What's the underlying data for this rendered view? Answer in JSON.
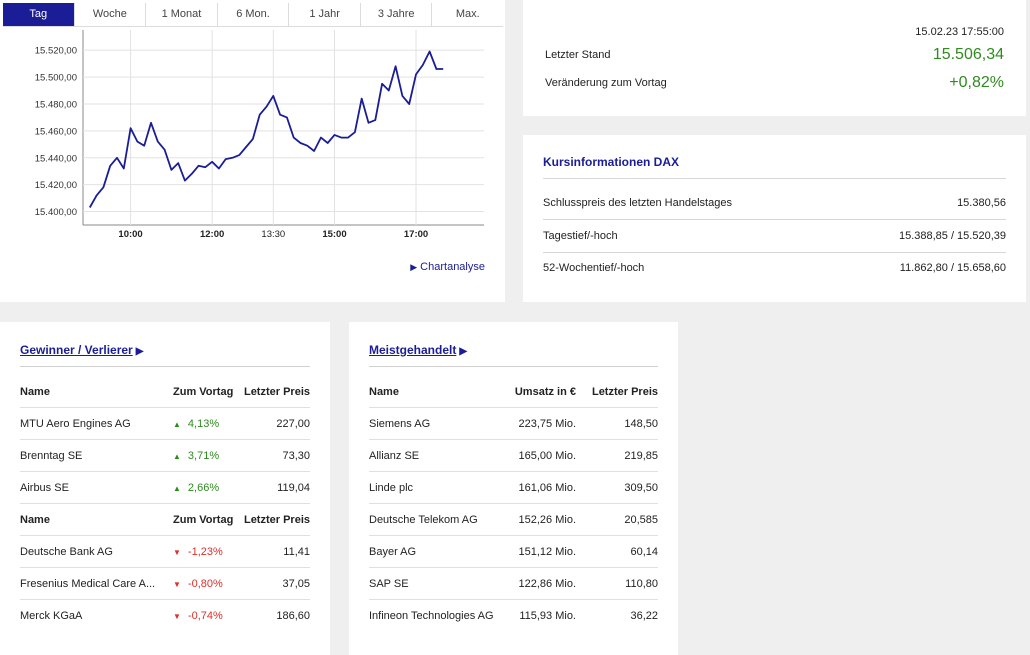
{
  "tabs": [
    {
      "label": "Tag",
      "active": true
    },
    {
      "label": "Woche"
    },
    {
      "label": "1 Monat"
    },
    {
      "label": "6 Mon."
    },
    {
      "label": "1 Jahr"
    },
    {
      "label": "3 Jahre"
    },
    {
      "label": "Max."
    }
  ],
  "chart_data": {
    "type": "line",
    "y_ticks": [
      "15.400,00",
      "15.420,00",
      "15.440,00",
      "15.460,00",
      "15.480,00",
      "15.500,00",
      "15.520,00"
    ],
    "x_ticks": [
      "10:00",
      "12:00",
      "13:30",
      "15:00",
      "17:00"
    ],
    "ylim": [
      15400,
      15520
    ],
    "grid": true,
    "line_color": "#1a1d96",
    "series": [
      {
        "values": [
          15403,
          15412,
          15418,
          15434,
          15440,
          15432,
          15462,
          15452,
          15449,
          15466,
          15452,
          15446,
          15431,
          15436,
          15423,
          15428,
          15434,
          15433,
          15437,
          15432,
          15439,
          15440,
          15442,
          15448,
          15454,
          15472,
          15478,
          15486,
          15472,
          15470,
          15455,
          15451,
          15449,
          15445,
          15455,
          15451,
          15457,
          15455,
          15455,
          15459,
          15484,
          15466,
          15468,
          15495,
          15490,
          15508,
          15486,
          15480,
          15502,
          15509,
          15519,
          15506,
          15506
        ],
        "x": [
          "09:00",
          "09:10",
          "09:20",
          "09:30",
          "09:40",
          "09:50",
          "10:00",
          "10:10",
          "10:20",
          "10:30",
          "10:40",
          "10:50",
          "11:00",
          "11:10",
          "11:20",
          "11:30",
          "11:40",
          "11:50",
          "12:00",
          "12:10",
          "12:20",
          "12:30",
          "12:40",
          "12:50",
          "13:00",
          "13:10",
          "13:20",
          "13:30",
          "13:40",
          "13:50",
          "14:00",
          "14:10",
          "14:20",
          "14:30",
          "14:40",
          "14:50",
          "15:00",
          "15:10",
          "15:20",
          "15:30",
          "15:40",
          "15:50",
          "16:00",
          "16:10",
          "16:20",
          "16:30",
          "16:40",
          "16:50",
          "17:00",
          "17:10",
          "17:20",
          "17:30",
          "17:40"
        ]
      }
    ]
  },
  "chartanalyse": {
    "label": "Chartanalyse"
  },
  "stand": {
    "timestamp": "15.02.23 17:55:00",
    "letzter_stand_label": "Letzter Stand",
    "letzter_stand_value": "15.506,34",
    "veraenderung_label": "Veränderung zum Vortag",
    "veraenderung_value": "+0,82%",
    "positive_color": "#2e8b1e"
  },
  "kurs": {
    "title": "Kursinformationen DAX",
    "rows": [
      {
        "label": "Schlusspreis des letzten Handelstages",
        "value": "15.380,56"
      },
      {
        "label": "Tagestief/-hoch",
        "value": "15.388,85 / 15.520,39"
      },
      {
        "label": "52-Wochentief/-hoch",
        "value": "11.862,80 / 15.658,60"
      }
    ]
  },
  "gewinner": {
    "title": "Gewinner / Verlierer",
    "header": {
      "name": "Name",
      "change": "Zum Vortag",
      "price": "Letzter Preis"
    },
    "gainers": [
      {
        "name": "MTU Aero Engines AG",
        "change": "4,13%",
        "price": "227,00"
      },
      {
        "name": "Brenntag SE",
        "change": "3,71%",
        "price": "73,30"
      },
      {
        "name": "Airbus SE",
        "change": "2,66%",
        "price": "119,04"
      }
    ],
    "losers": [
      {
        "name": "Deutsche Bank AG",
        "change": "-1,23%",
        "price": "11,41"
      },
      {
        "name": "Fresenius Medical Care A...",
        "change": "-0,80%",
        "price": "37,05"
      },
      {
        "name": "Merck KGaA",
        "change": "-0,74%",
        "price": "186,60"
      }
    ],
    "up_icon": "triangle-up-icon",
    "down_icon": "triangle-down-icon",
    "up_color": "#2e8b1e",
    "down_color": "#d9302c"
  },
  "meist": {
    "title": "Meistgehandelt",
    "header": {
      "name": "Name",
      "umsatz": "Umsatz in €",
      "price": "Letzter Preis"
    },
    "rows": [
      {
        "name": "Siemens AG",
        "umsatz": "223,75 Mio.",
        "price": "148,50"
      },
      {
        "name": "Allianz SE",
        "umsatz": "165,00 Mio.",
        "price": "219,85"
      },
      {
        "name": "Linde plc",
        "umsatz": "161,06 Mio.",
        "price": "309,50"
      },
      {
        "name": "Deutsche Telekom AG",
        "umsatz": "152,26 Mio.",
        "price": "20,585"
      },
      {
        "name": "Bayer AG",
        "umsatz": "151,12 Mio.",
        "price": "60,14"
      },
      {
        "name": "SAP SE",
        "umsatz": "122,86 Mio.",
        "price": "110,80"
      },
      {
        "name": "Infineon Technologies AG",
        "umsatz": "115,93 Mio.",
        "price": "36,22"
      }
    ]
  }
}
